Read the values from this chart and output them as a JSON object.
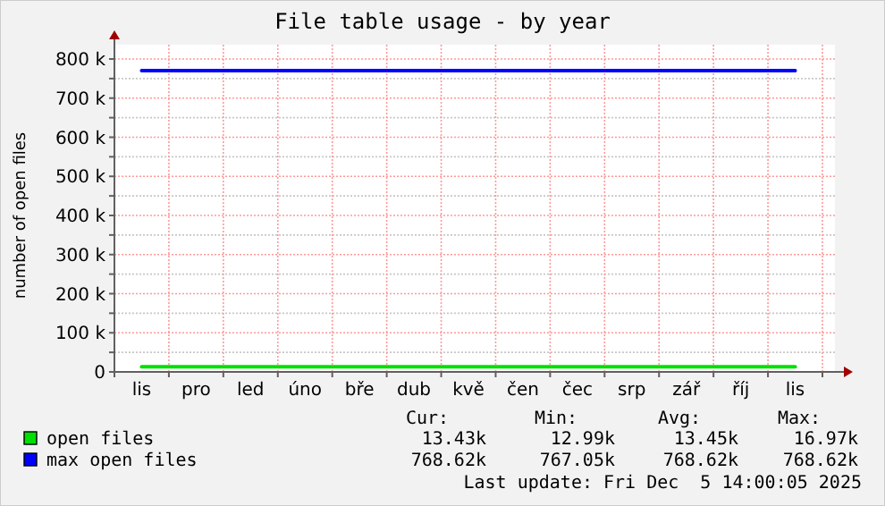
{
  "chart_data": {
    "type": "line",
    "title": "File table usage - by year",
    "ylabel": "number of open files",
    "categories": [
      "lis",
      "pro",
      "led",
      "úno",
      "bře",
      "dub",
      "kvě",
      "čen",
      "čec",
      "srp",
      "zář",
      "říj",
      "lis"
    ],
    "series": [
      {
        "name": "open files",
        "color": "#00e000",
        "values": [
          13000,
          13000,
          13000,
          13000,
          13000,
          13000,
          13000,
          13000,
          13000,
          13000,
          13000,
          13000,
          13000
        ]
      },
      {
        "name": "max open files",
        "color": "#0000ff",
        "values": [
          770000,
          770000,
          770000,
          770000,
          770000,
          770000,
          770000,
          770000,
          770000,
          770000,
          770000,
          770000,
          770000
        ]
      }
    ],
    "ylim": [
      0,
      800000
    ],
    "yticks": [
      {
        "value": 0,
        "label": "0"
      },
      {
        "value": 50000,
        "label": null
      },
      {
        "value": 100000,
        "label": "100 k"
      },
      {
        "value": 150000,
        "label": null
      },
      {
        "value": 200000,
        "label": "200 k"
      },
      {
        "value": 250000,
        "label": null
      },
      {
        "value": 300000,
        "label": "300 k"
      },
      {
        "value": 350000,
        "label": null
      },
      {
        "value": 400000,
        "label": "400 k"
      },
      {
        "value": 450000,
        "label": null
      },
      {
        "value": 500000,
        "label": "500 k"
      },
      {
        "value": 550000,
        "label": null
      },
      {
        "value": 600000,
        "label": "600 k"
      },
      {
        "value": 650000,
        "label": null
      },
      {
        "value": 700000,
        "label": "700 k"
      },
      {
        "value": 750000,
        "label": null
      },
      {
        "value": 800000,
        "label": "800 k"
      }
    ],
    "grid": true,
    "legend": "bottom",
    "marker": "none",
    "line_style": "solid",
    "annotations": [
      "Cur:",
      "Min:",
      "Avg:",
      "Max:",
      "13.43k",
      "12.99k",
      "13.45k",
      "16.97k",
      "768.62k",
      "767.05k",
      "768.62k",
      "768.62k",
      "Last update: Fri Dec  5 14:00:05 2025"
    ]
  }
}
